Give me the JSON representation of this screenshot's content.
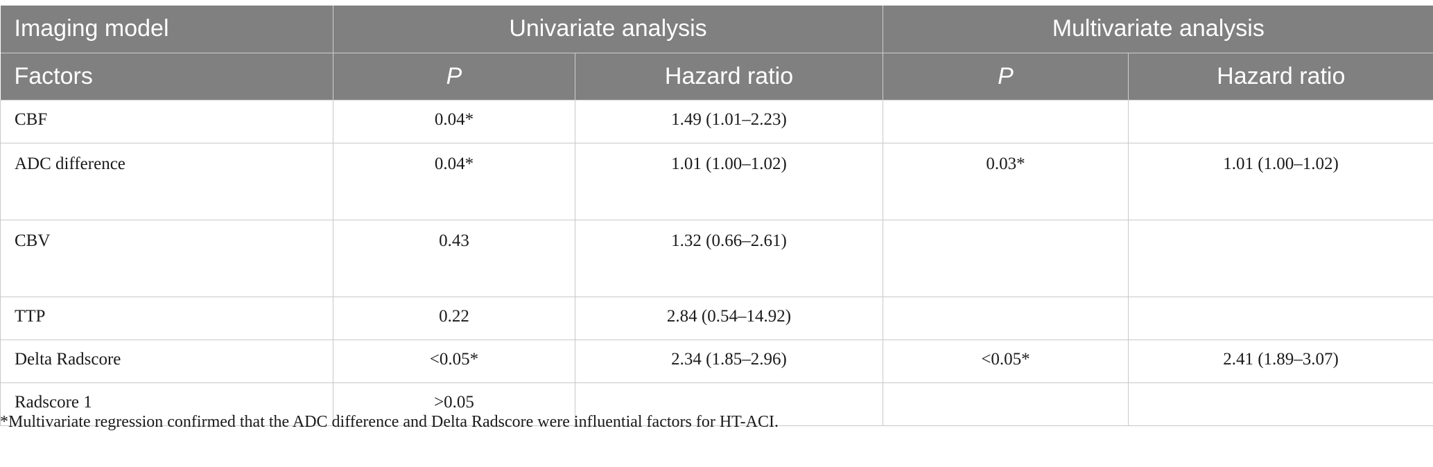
{
  "table": {
    "header_row1": {
      "col0": "Imaging model",
      "group1": "Univariate analysis",
      "group2": "Multivariate analysis"
    },
    "header_row2": {
      "col0": "Factors",
      "uni_p": "P",
      "uni_hr": "Hazard ratio",
      "multi_p": "P",
      "multi_hr": "Hazard ratio"
    },
    "rows": [
      {
        "factor": "CBF",
        "uni_p": "0.04*",
        "uni_hr": "1.49 (1.01–2.23)",
        "multi_p": "",
        "multi_hr": ""
      },
      {
        "factor": "ADC difference",
        "uni_p": "0.04*",
        "uni_hr": "1.01 (1.00–1.02)",
        "multi_p": "0.03*",
        "multi_hr": "1.01 (1.00–1.02)"
      },
      {
        "factor": "CBV",
        "uni_p": "0.43",
        "uni_hr": "1.32 (0.66–2.61)",
        "multi_p": "",
        "multi_hr": ""
      },
      {
        "factor": "TTP",
        "uni_p": "0.22",
        "uni_hr": "2.84 (0.54–14.92)",
        "multi_p": "",
        "multi_hr": ""
      },
      {
        "factor": "Delta Radscore",
        "uni_p": "<0.05*",
        "uni_hr": "2.34 (1.85–2.96)",
        "multi_p": "<0.05*",
        "multi_hr": "2.41 (1.89–3.07)"
      },
      {
        "factor": "Radscore 1",
        "uni_p": ">0.05",
        "uni_hr": "",
        "multi_p": "",
        "multi_hr": ""
      }
    ]
  },
  "footnote": "*Multivariate regression confirmed that the ADC difference and Delta Radscore were influential factors for HT-ACI."
}
